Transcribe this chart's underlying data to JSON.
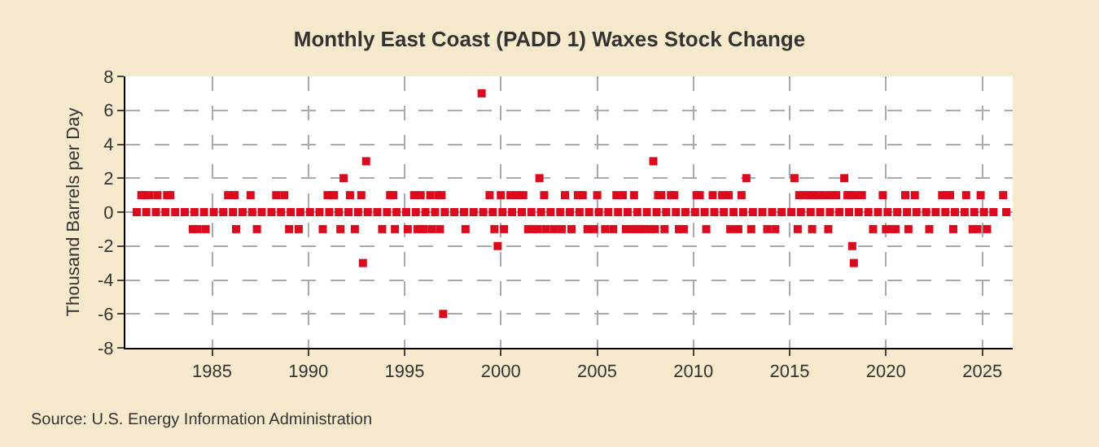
{
  "chart_data": {
    "type": "scatter",
    "title": "Monthly East Coast (PADD 1) Waxes Stock Change",
    "ylabel": "Thousand Barrels per Day",
    "annotations": [
      "Source: U.S. Energy Information Administration"
    ],
    "xlim": [
      "1980-07",
      "2026-08"
    ],
    "xticks": [
      "1985",
      "1990",
      "1995",
      "2000",
      "2005",
      "2010",
      "2015",
      "2020",
      "2025"
    ],
    "ylim": [
      -8,
      8
    ],
    "yticks": [
      -8,
      -6,
      -4,
      -2,
      0,
      2,
      4,
      6,
      8
    ],
    "grid": true,
    "marker": "square",
    "series": [
      {
        "color": "#dd0a1e",
        "x": [
          "1981-05",
          "1981-07",
          "1981-10",
          "1982-03",
          "1982-09",
          "1982-11",
          "1984-01",
          "1984-04",
          "1984-09",
          "1985-11",
          "1986-03",
          "1986-04",
          "1987-01",
          "1987-05",
          "1988-05",
          "1988-10",
          "1989-01",
          "1989-07",
          "1990-10",
          "1991-01",
          "1991-04",
          "1991-05",
          "1991-09",
          "1991-11",
          "1992-03",
          "1992-06",
          "1992-10",
          "1992-11",
          "1993-01",
          "1993-11",
          "1994-04",
          "1994-06",
          "1994-07",
          "1995-03",
          "1995-07",
          "1995-09",
          "1995-11",
          "1995-12",
          "1996-01",
          "1996-05",
          "1996-06",
          "1996-10",
          "1996-11",
          "1996-12",
          "1997-01",
          "1998-03",
          "1999-01",
          "1999-06",
          "1999-09",
          "1999-11",
          "2000-01",
          "2000-03",
          "2000-07",
          "2000-11",
          "2001-03",
          "2001-06",
          "2001-09",
          "2001-12",
          "2002-01",
          "2002-04",
          "2002-05",
          "2002-10",
          "2003-03",
          "2003-05",
          "2003-09",
          "2004-01",
          "2004-04",
          "2004-07",
          "2004-11",
          "2005-01",
          "2005-06",
          "2005-11",
          "2006-01",
          "2006-05",
          "2006-07",
          "2006-10",
          "2006-12",
          "2007-01",
          "2007-04",
          "2007-06",
          "2007-10",
          "2007-12",
          "2008-01",
          "2008-03",
          "2008-05",
          "2008-07",
          "2008-11",
          "2009-01",
          "2009-04",
          "2009-07",
          "2010-03",
          "2010-05",
          "2010-09",
          "2011-01",
          "2011-07",
          "2011-11",
          "2011-12",
          "2012-05",
          "2012-07",
          "2012-10",
          "2013-01",
          "2013-11",
          "2014-04",
          "2015-04",
          "2015-06",
          "2015-07",
          "2015-10",
          "2016-01",
          "2016-03",
          "2016-04",
          "2016-07",
          "2016-11",
          "2017-01",
          "2017-03",
          "2017-06",
          "2017-11",
          "2018-01",
          "2018-03",
          "2018-04",
          "2018-05",
          "2018-06",
          "2018-10",
          "2019-05",
          "2019-11",
          "2020-01",
          "2020-05",
          "2020-07",
          "2021-01",
          "2021-03",
          "2021-07",
          "2022-04",
          "2022-12",
          "2023-03",
          "2023-05",
          "2023-07",
          "2024-03",
          "2024-07",
          "2024-10",
          "2024-12",
          "2025-04",
          "2026-02",
          "1981-02",
          "1981-08",
          "1982-02",
          "1982-08",
          "1983-02",
          "1983-08",
          "1984-02",
          "1984-08",
          "1985-02",
          "1985-08",
          "1986-02",
          "1986-08",
          "1987-02",
          "1987-08",
          "1988-02",
          "1988-08",
          "1989-02",
          "1989-08",
          "1990-02",
          "1990-08",
          "1991-02",
          "1991-08",
          "1992-02",
          "1992-08",
          "1993-02",
          "1993-08",
          "1994-02",
          "1994-08",
          "1995-02",
          "1995-08",
          "1996-02",
          "1996-08",
          "1997-02",
          "1997-08",
          "1998-02",
          "1998-08",
          "1999-02",
          "1999-08",
          "2000-02",
          "2000-08",
          "2001-02",
          "2001-08",
          "2002-02",
          "2002-08",
          "2003-02",
          "2003-08",
          "2004-02",
          "2004-08",
          "2005-02",
          "2005-08",
          "2006-02",
          "2006-08",
          "2007-02",
          "2007-08",
          "2008-02",
          "2008-08",
          "2009-02",
          "2009-08",
          "2010-02",
          "2010-08",
          "2011-02",
          "2011-08",
          "2012-02",
          "2012-08",
          "2013-02",
          "2013-08",
          "2014-02",
          "2014-08",
          "2015-02",
          "2015-08",
          "2016-02",
          "2016-08",
          "2017-02",
          "2017-08",
          "2018-02",
          "2018-08",
          "2019-02",
          "2019-08",
          "2020-02",
          "2020-08",
          "2021-02",
          "2021-08",
          "2022-02",
          "2022-08",
          "2023-02",
          "2023-08",
          "2024-02",
          "2024-08",
          "2025-02",
          "2025-08",
          "2026-04"
        ],
        "values": [
          1,
          1,
          1,
          1,
          1,
          1,
          -1,
          -1,
          -1,
          1,
          1,
          -1,
          1,
          -1,
          1,
          1,
          -1,
          -1,
          -1,
          1,
          1,
          1,
          -1,
          2,
          1,
          -1,
          1,
          -3,
          3,
          -1,
          1,
          1,
          -1,
          -1,
          1,
          -1,
          1,
          -1,
          -1,
          1,
          -1,
          1,
          -1,
          1,
          -6,
          -1,
          7,
          1,
          -1,
          -2,
          1,
          -1,
          1,
          1,
          1,
          -1,
          -1,
          -1,
          2,
          1,
          -1,
          -1,
          -1,
          1,
          -1,
          1,
          1,
          -1,
          -1,
          1,
          -1,
          -1,
          1,
          1,
          -1,
          -1,
          1,
          -1,
          -1,
          -1,
          -1,
          3,
          -1,
          1,
          1,
          -1,
          1,
          1,
          -1,
          -1,
          1,
          1,
          -1,
          1,
          1,
          1,
          -1,
          -1,
          1,
          2,
          -1,
          -1,
          -1,
          2,
          -1,
          1,
          1,
          1,
          -1,
          1,
          1,
          1,
          -1,
          1,
          1,
          2,
          1,
          1,
          -2,
          -3,
          1,
          1,
          -1,
          1,
          -1,
          -1,
          -1,
          1,
          -1,
          1,
          -1,
          1,
          1,
          1,
          -1,
          1,
          -1,
          -1,
          1,
          -1,
          1,
          0,
          0,
          0,
          0,
          0,
          0,
          0,
          0,
          0,
          0,
          0,
          0,
          0,
          0,
          0,
          0,
          0,
          0,
          0,
          0,
          0,
          0,
          0,
          0,
          0,
          0,
          0,
          0,
          0,
          0,
          0,
          0,
          0,
          0,
          0,
          0,
          0,
          0,
          0,
          0,
          0,
          0,
          0,
          0,
          0,
          0,
          0,
          0,
          0,
          0,
          0,
          0,
          0,
          0,
          0,
          0,
          0,
          0,
          0,
          0,
          0,
          0,
          0,
          0,
          0,
          0,
          0,
          0,
          0,
          0,
          0,
          0,
          0,
          0,
          0,
          0,
          0,
          0,
          0,
          0,
          0,
          0,
          0,
          0,
          0,
          0,
          0,
          0,
          0,
          0,
          0
        ]
      }
    ]
  }
}
